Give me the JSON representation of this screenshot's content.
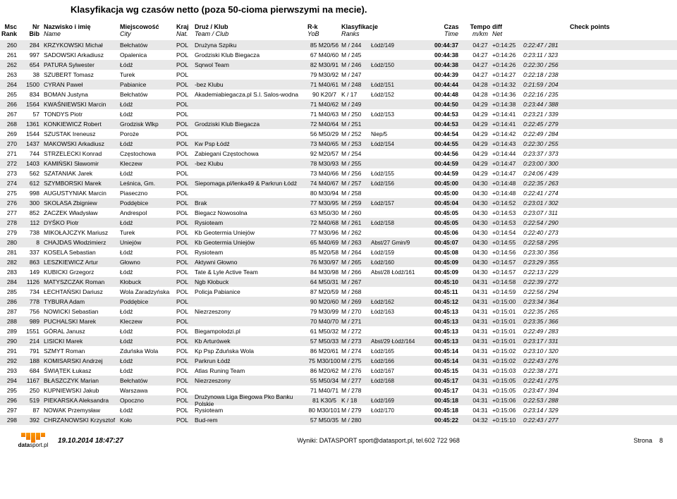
{
  "title": "Klasyfikacja wg czasów netto (poza 50-cioma pierwszymi na mecie).",
  "columns": {
    "msc1": "Msc",
    "msc2": "Rank",
    "nr1": "Nr",
    "nr2": "Bib",
    "name1": "Nazwisko i imię",
    "name2": "Name",
    "city1": "Miejscowość",
    "city2": "City",
    "nat1": "Kraj",
    "nat2": "Nat.",
    "club1": "Druż / Klub",
    "club2": "Team / Club",
    "rk1": "R-k",
    "rk2": "YoB",
    "ranks1": "Klasyfikacje",
    "ranks2": "Ranks",
    "time1": "Czas",
    "time2": "Time",
    "tempo1": "Tempo",
    "tempo2": "m/km",
    "diff1": "diff",
    "diff2": "Net",
    "check": "Check points"
  },
  "rows": [
    {
      "msc": "260",
      "bib": "284",
      "name": "KRZYKOWSKI Michał",
      "city": "Bełchatów",
      "nat": "POL",
      "club": "Drużyna Szpiku",
      "rk": "85 M20/56",
      "ranks": "M / 244",
      "extra": "Łódź/149",
      "time": "00:44:37",
      "tempo": "04:27",
      "diff": "+0:14:25",
      "net": "0:22:47 / 281"
    },
    {
      "msc": "261",
      "bib": "997",
      "name": "SADOWSKI Arkadiusz",
      "city": "Opalenica",
      "nat": "POL",
      "club": "Grodziski Klub Biegacza",
      "rk": "67 M40/60",
      "ranks": "M / 245",
      "extra": "",
      "time": "00:44:38",
      "tempo": "04:27",
      "diff": "+0:14:26",
      "net": "0:23:11 / 323"
    },
    {
      "msc": "262",
      "bib": "654",
      "name": "PATURA Sylwester",
      "city": "Łódź",
      "nat": "POL",
      "club": "Sqrwol Team",
      "rk": "82 M30/91",
      "ranks": "M / 246",
      "extra": "Łódź/150",
      "time": "00:44:38",
      "tempo": "04:27",
      "diff": "+0:14:26",
      "net": "0:22:30 / 256"
    },
    {
      "msc": "263",
      "bib": "38",
      "name": "SZUBERT Tomasz",
      "city": "Turek",
      "nat": "POL",
      "club": "",
      "rk": "79 M30/92",
      "ranks": "M / 247",
      "extra": "",
      "time": "00:44:39",
      "tempo": "04:27",
      "diff": "+0:14:27",
      "net": "0:22:18 / 238"
    },
    {
      "msc": "264",
      "bib": "1500",
      "name": "CYRAN Paweł",
      "city": "Pabianice",
      "nat": "POL",
      "club": "-bez Klubu",
      "rk": "71 M40/61",
      "ranks": "M / 248",
      "extra": "Łódź/151",
      "time": "00:44:44",
      "tempo": "04:28",
      "diff": "+0:14:32",
      "net": "0:21:59 / 204"
    },
    {
      "msc": "265",
      "bib": "834",
      "name": "BOMAN Justyna",
      "city": "Bełchatów",
      "nat": "POL",
      "club": "Akademiabiegacza.pl S.l. Salos-wodna",
      "rk": "90 K20/7",
      "ranks": "K / 17",
      "extra": "Łódź/152",
      "time": "00:44:48",
      "tempo": "04:28",
      "diff": "+0:14:36",
      "net": "0:22:16 / 235"
    },
    {
      "msc": "266",
      "bib": "1564",
      "name": "KWAŚNIEWSKI Marcin",
      "city": "Łódź",
      "nat": "POL",
      "club": "",
      "rk": "71 M40/62",
      "ranks": "M / 249",
      "extra": "",
      "time": "00:44:50",
      "tempo": "04:29",
      "diff": "+0:14:38",
      "net": "0:23:44 / 388"
    },
    {
      "msc": "267",
      "bib": "57",
      "name": "TONDYS Piotr",
      "city": "Łódź",
      "nat": "POL",
      "club": "",
      "rk": "71 M40/63",
      "ranks": "M / 250",
      "extra": "Łódź/153",
      "time": "00:44:53",
      "tempo": "04:29",
      "diff": "+0:14:41",
      "net": "0:23:21 / 339"
    },
    {
      "msc": "268",
      "bib": "1361",
      "name": "KONKIEWICZ Robert",
      "city": "Grodzisk Wlkp",
      "nat": "POL",
      "club": "Grodziski Klub Biegacza",
      "rk": "72 M40/64",
      "ranks": "M / 251",
      "extra": "",
      "time": "00:44:53",
      "tempo": "04:29",
      "diff": "+0:14:41",
      "net": "0:22:45 / 279"
    },
    {
      "msc": "269",
      "bib": "1544",
      "name": "SZUSTAK Ireneusz",
      "city": "Poroże",
      "nat": "POL",
      "club": "",
      "rk": "56 M50/29",
      "ranks": "M / 252",
      "extra": "Niep/5",
      "time": "00:44:54",
      "tempo": "04:29",
      "diff": "+0:14:42",
      "net": "0:22:49 / 284"
    },
    {
      "msc": "270",
      "bib": "1437",
      "name": "MAKOWSKI Arkadiusz",
      "city": "Łódź",
      "nat": "POL",
      "club": "Kw Psp Łódź",
      "rk": "73 M40/65",
      "ranks": "M / 253",
      "extra": "Łódź/154",
      "time": "00:44:55",
      "tempo": "04:29",
      "diff": "+0:14:43",
      "net": "0:22:30 / 255"
    },
    {
      "msc": "271",
      "bib": "744",
      "name": "STRZELECKI Konrad",
      "city": "Częstochowa",
      "nat": "POL",
      "club": "Zabiegani Częstochowa",
      "rk": "92 M20/57",
      "ranks": "M / 254",
      "extra": "",
      "time": "00:44:56",
      "tempo": "04:29",
      "diff": "+0:14:44",
      "net": "0:23:37 / 373"
    },
    {
      "msc": "272",
      "bib": "1403",
      "name": "KAMIŃSKI Sławomir",
      "city": "Kleczew",
      "nat": "POL",
      "club": "-bez Klubu",
      "rk": "78 M30/93",
      "ranks": "M / 255",
      "extra": "",
      "time": "00:44:59",
      "tempo": "04:29",
      "diff": "+0:14:47",
      "net": "0:23:00 / 300"
    },
    {
      "msc": "273",
      "bib": "562",
      "name": "SZATANIAK Jarek",
      "city": "Łódź",
      "nat": "POL",
      "club": "",
      "rk": "73 M40/66",
      "ranks": "M / 256",
      "extra": "Łódź/155",
      "time": "00:44:59",
      "tempo": "04:29",
      "diff": "+0:14:47",
      "net": "0:24:06 / 439"
    },
    {
      "msc": "274",
      "bib": "612",
      "name": "SZYMBORSKI Marek",
      "city": "Leśnica, Gm.",
      "nat": "POL",
      "club": "Siepomaga.pl/lenka49 & Parkrun Łódź",
      "rk": "74 M40/67",
      "ranks": "M / 257",
      "extra": "Łódź/156",
      "time": "00:45:00",
      "tempo": "04:30",
      "diff": "+0:14:48",
      "net": "0:22:35 / 263"
    },
    {
      "msc": "275",
      "bib": "998",
      "name": "AUGUSTYNIAK Marcin",
      "city": "Piaseczno",
      "nat": "POL",
      "club": "",
      "rk": "80 M30/94",
      "ranks": "M / 258",
      "extra": "",
      "time": "00:45:00",
      "tempo": "04:30",
      "diff": "+0:14:48",
      "net": "0:22:41 / 274"
    },
    {
      "msc": "276",
      "bib": "300",
      "name": "SKOLASA Zbigniew",
      "city": "Poddębice",
      "nat": "POL",
      "club": "Brak",
      "rk": "77 M30/95",
      "ranks": "M / 259",
      "extra": "Łódź/157",
      "time": "00:45:04",
      "tempo": "04:30",
      "diff": "+0:14:52",
      "net": "0:23:01 / 302"
    },
    {
      "msc": "277",
      "bib": "852",
      "name": "ŻACZEK Władysław",
      "city": "Andrespol",
      "nat": "POL",
      "club": "Biegacz Nowosolna",
      "rk": "63 M50/30",
      "ranks": "M / 260",
      "extra": "",
      "time": "00:45:05",
      "tempo": "04:30",
      "diff": "+0:14:53",
      "net": "0:23:07 / 311"
    },
    {
      "msc": "278",
      "bib": "112",
      "name": "DYŚKO Piotr",
      "city": "Łódź",
      "nat": "POL",
      "club": "Rysioteam",
      "rk": "72 M40/68",
      "ranks": "M / 261",
      "extra": "Łódź/158",
      "time": "00:45:05",
      "tempo": "04:30",
      "diff": "+0:14:53",
      "net": "0:22:54 / 290"
    },
    {
      "msc": "279",
      "bib": "738",
      "name": "MIKOŁAJCZYK Mariusz",
      "city": "Turek",
      "nat": "POL",
      "club": "Kb Geotermia Uniejów",
      "rk": "77 M30/96",
      "ranks": "M / 262",
      "extra": "",
      "time": "00:45:06",
      "tempo": "04:30",
      "diff": "+0:14:54",
      "net": "0:22:40 / 273"
    },
    {
      "msc": "280",
      "bib": "8",
      "name": "CHAJDAS Włodzimierz",
      "city": "Uniejów",
      "nat": "POL",
      "club": "Kb Geotermia Uniejów",
      "rk": "65 M40/69",
      "ranks": "M / 263",
      "extra": "Abst/27 Gmin/9",
      "time": "00:45:07",
      "tempo": "04:30",
      "diff": "+0:14:55",
      "net": "0:22:58 / 295"
    },
    {
      "msc": "281",
      "bib": "337",
      "name": "KOSELA Sebastian",
      "city": "Łódź",
      "nat": "POL",
      "club": "Rysioteam",
      "rk": "85 M20/58",
      "ranks": "M / 264",
      "extra": "Łódź/159",
      "time": "00:45:08",
      "tempo": "04:30",
      "diff": "+0:14:56",
      "net": "0:23:30 / 356"
    },
    {
      "msc": "282",
      "bib": "863",
      "name": "LESZKIEWICZ Artur",
      "city": "Głowno",
      "nat": "POL",
      "club": "Aktywni Głowno",
      "rk": "76 M30/97",
      "ranks": "M / 265",
      "extra": "Łódź/160",
      "time": "00:45:09",
      "tempo": "04:30",
      "diff": "+0:14:57",
      "net": "0:23:29 / 355"
    },
    {
      "msc": "283",
      "bib": "149",
      "name": "KUBICKI Grzegorz",
      "city": "Łódź",
      "nat": "POL",
      "club": "Tate & Lyle Active Team",
      "rk": "84 M30/98",
      "ranks": "M / 266",
      "extra": "Abst/28 Łódź/161",
      "time": "00:45:09",
      "tempo": "04:30",
      "diff": "+0:14:57",
      "net": "0:22:13 / 229"
    },
    {
      "msc": "284",
      "bib": "1126",
      "name": "MATYSZCZAK Roman",
      "city": "Kłobuck",
      "nat": "POL",
      "club": "Ngb Kłobuck",
      "rk": "64 M50/31",
      "ranks": "M / 267",
      "extra": "",
      "time": "00:45:10",
      "tempo": "04:31",
      "diff": "+0:14:58",
      "net": "0:22:39 / 272"
    },
    {
      "msc": "285",
      "bib": "734",
      "name": "ŁECHTAŃSKI Dariusz",
      "city": "Wola Zaradzyńska",
      "nat": "POL",
      "club": "Policja Pabianice",
      "rk": "87 M20/59",
      "ranks": "M / 268",
      "extra": "",
      "time": "00:45:11",
      "tempo": "04:31",
      "diff": "+0:14:59",
      "net": "0:22:56 / 294"
    },
    {
      "msc": "286",
      "bib": "778",
      "name": "TYBURA Adam",
      "city": "Poddębice",
      "nat": "POL",
      "club": "",
      "rk": "90 M20/60",
      "ranks": "M / 269",
      "extra": "Łódź/162",
      "time": "00:45:12",
      "tempo": "04:31",
      "diff": "+0:15:00",
      "net": "0:23:34 / 364"
    },
    {
      "msc": "287",
      "bib": "756",
      "name": "NOWICKI Sebastian",
      "city": "Łódź",
      "nat": "POL",
      "club": "Niezrzeszony",
      "rk": "79 M30/99",
      "ranks": "M / 270",
      "extra": "Łódź/163",
      "time": "00:45:13",
      "tempo": "04:31",
      "diff": "+0:15:01",
      "net": "0:22:35 / 265"
    },
    {
      "msc": "288",
      "bib": "989",
      "name": "PUCHALSKI Marek",
      "city": "Kleczew",
      "nat": "POL",
      "club": "",
      "rk": "70 M40/70",
      "ranks": "M / 271",
      "extra": "",
      "time": "00:45:13",
      "tempo": "04:31",
      "diff": "+0:15:01",
      "net": "0:23:35 / 366"
    },
    {
      "msc": "289",
      "bib": "1551",
      "name": "GÓRAL Janusz",
      "city": "Łódź",
      "nat": "POL",
      "club": "Biegampolodzi.pl",
      "rk": "61 M50/32",
      "ranks": "M / 272",
      "extra": "",
      "time": "00:45:13",
      "tempo": "04:31",
      "diff": "+0:15:01",
      "net": "0:22:49 / 283"
    },
    {
      "msc": "290",
      "bib": "214",
      "name": "LISICKI Marek",
      "city": "Łódź",
      "nat": "POL",
      "club": "Kb Arturówek",
      "rk": "57 M50/33",
      "ranks": "M / 273",
      "extra": "Abst/29 Łódź/164",
      "time": "00:45:13",
      "tempo": "04:31",
      "diff": "+0:15:01",
      "net": "0:23:17 / 331"
    },
    {
      "msc": "291",
      "bib": "791",
      "name": "SZMYT Roman",
      "city": "Zduńska Wola",
      "nat": "POL",
      "club": "Kp Psp Zduńska Wola",
      "rk": "86 M20/61",
      "ranks": "M / 274",
      "extra": "Łódź/165",
      "time": "00:45:14",
      "tempo": "04:31",
      "diff": "+0:15:02",
      "net": "0:23:10 / 320"
    },
    {
      "msc": "292",
      "bib": "188",
      "name": "KOMISARSKI Andrzej",
      "city": "Łódź",
      "nat": "POL",
      "club": "Parkrun Łódź",
      "rk": "75 M30/100",
      "ranks": "M / 275",
      "extra": "Łódź/166",
      "time": "00:45:14",
      "tempo": "04:31",
      "diff": "+0:15:02",
      "net": "0:22:43 / 276"
    },
    {
      "msc": "293",
      "bib": "684",
      "name": "ŚWIĄTEK Łukasz",
      "city": "Łódź",
      "nat": "POL",
      "club": "Atlas Runing Team",
      "rk": "86 M20/62",
      "ranks": "M / 276",
      "extra": "Łódź/167",
      "time": "00:45:15",
      "tempo": "04:31",
      "diff": "+0:15:03",
      "net": "0:22:38 / 271"
    },
    {
      "msc": "294",
      "bib": "1167",
      "name": "BŁASZCZYK Marian",
      "city": "Bełchatów",
      "nat": "POL",
      "club": "Niezrzeszony",
      "rk": "55 M50/34",
      "ranks": "M / 277",
      "extra": "Łódź/168",
      "time": "00:45:17",
      "tempo": "04:31",
      "diff": "+0:15:05",
      "net": "0:22:41 / 275"
    },
    {
      "msc": "295",
      "bib": "250",
      "name": "KUPNIEWSKI Jakub",
      "city": "Warszawa",
      "nat": "POL",
      "club": "",
      "rk": "71 M40/71",
      "ranks": "M / 278",
      "extra": "",
      "time": "00:45:17",
      "tempo": "04:31",
      "diff": "+0:15:05",
      "net": "0:23:47 / 394"
    },
    {
      "msc": "296",
      "bib": "519",
      "name": "PIEKARSKA Aleksandra",
      "city": "Opoczno",
      "nat": "POL",
      "club": "Drużynowa Liga Biegowa Pko Banku Polskie",
      "rk": "81 K30/5",
      "ranks": "K / 18",
      "extra": "Łódź/169",
      "time": "00:45:18",
      "tempo": "04:31",
      "diff": "+0:15:06",
      "net": "0:22:53 / 288"
    },
    {
      "msc": "297",
      "bib": "87",
      "name": "NOWAK Przemysław",
      "city": "Łódź",
      "nat": "POL",
      "club": "Rysioteam",
      "rk": "80 M30/101",
      "ranks": "M / 279",
      "extra": "Łódź/170",
      "time": "00:45:18",
      "tempo": "04:31",
      "diff": "+0:15:06",
      "net": "0:23:14 / 329"
    },
    {
      "msc": "298",
      "bib": "392",
      "name": "CHRZANOWSKI Krzysztof",
      "city": "Koło",
      "nat": "POL",
      "club": "Bud-rem",
      "rk": "57 M50/35",
      "ranks": "M / 280",
      "extra": "",
      "time": "00:45:22",
      "tempo": "04:32",
      "diff": "+0:15:10",
      "net": "0:22:43 / 277"
    }
  ],
  "footer": {
    "date": "19.10.2014 18:47:27",
    "center": "Wyniki: DATASPORT sport@datasport.pl, tel.602 722 968",
    "page_label": "Strona",
    "page_num": "8",
    "logo_top": "data",
    "logo_bottom": "sport.pl"
  }
}
